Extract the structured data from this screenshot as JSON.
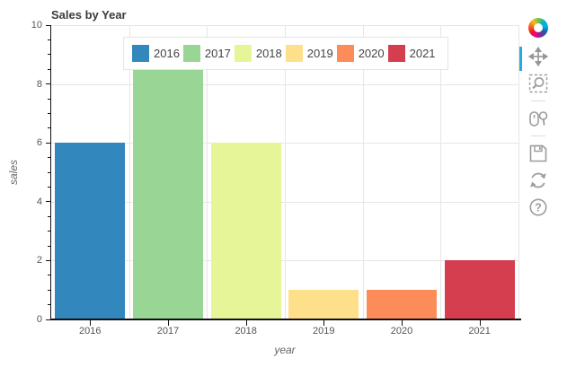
{
  "chart_data": {
    "type": "bar",
    "title": "Sales by Year",
    "categories": [
      "2016",
      "2017",
      "2018",
      "2019",
      "2020",
      "2021"
    ],
    "values": [
      6,
      8.5,
      6,
      1,
      1,
      2
    ],
    "bar_colors": [
      "#3288bd",
      "#99d594",
      "#e6f598",
      "#fee08b",
      "#fc8d59",
      "#d53e4f"
    ],
    "xlabel": "year",
    "ylabel": "sales",
    "ylim": [
      0,
      10
    ],
    "y_major_ticks": [
      0,
      2,
      4,
      6,
      8,
      10
    ],
    "y_minor_tick_interval": 0.5,
    "bar_width_ratio": 0.9,
    "grid": "on",
    "legend": {
      "orientation": "horizontal",
      "position": "top-center",
      "labels": [
        "2016",
        "2017",
        "2018",
        "2019",
        "2020",
        "2021"
      ]
    }
  },
  "toolbar": {
    "logo": "bokeh-logo",
    "active_tool": "pan",
    "active_tool_color": "#26aae1",
    "tools": [
      {
        "name": "pan",
        "icon": "pan-icon",
        "active": true
      },
      {
        "name": "box-zoom",
        "icon": "box-zoom-icon",
        "active": false
      },
      {
        "name": "wheel-zoom",
        "icon": "wheel-zoom-icon",
        "active": false
      },
      {
        "name": "save",
        "icon": "save-icon",
        "active": false
      },
      {
        "name": "reset",
        "icon": "reset-icon",
        "active": false
      },
      {
        "name": "help",
        "icon": "help-icon",
        "active": false
      }
    ]
  }
}
